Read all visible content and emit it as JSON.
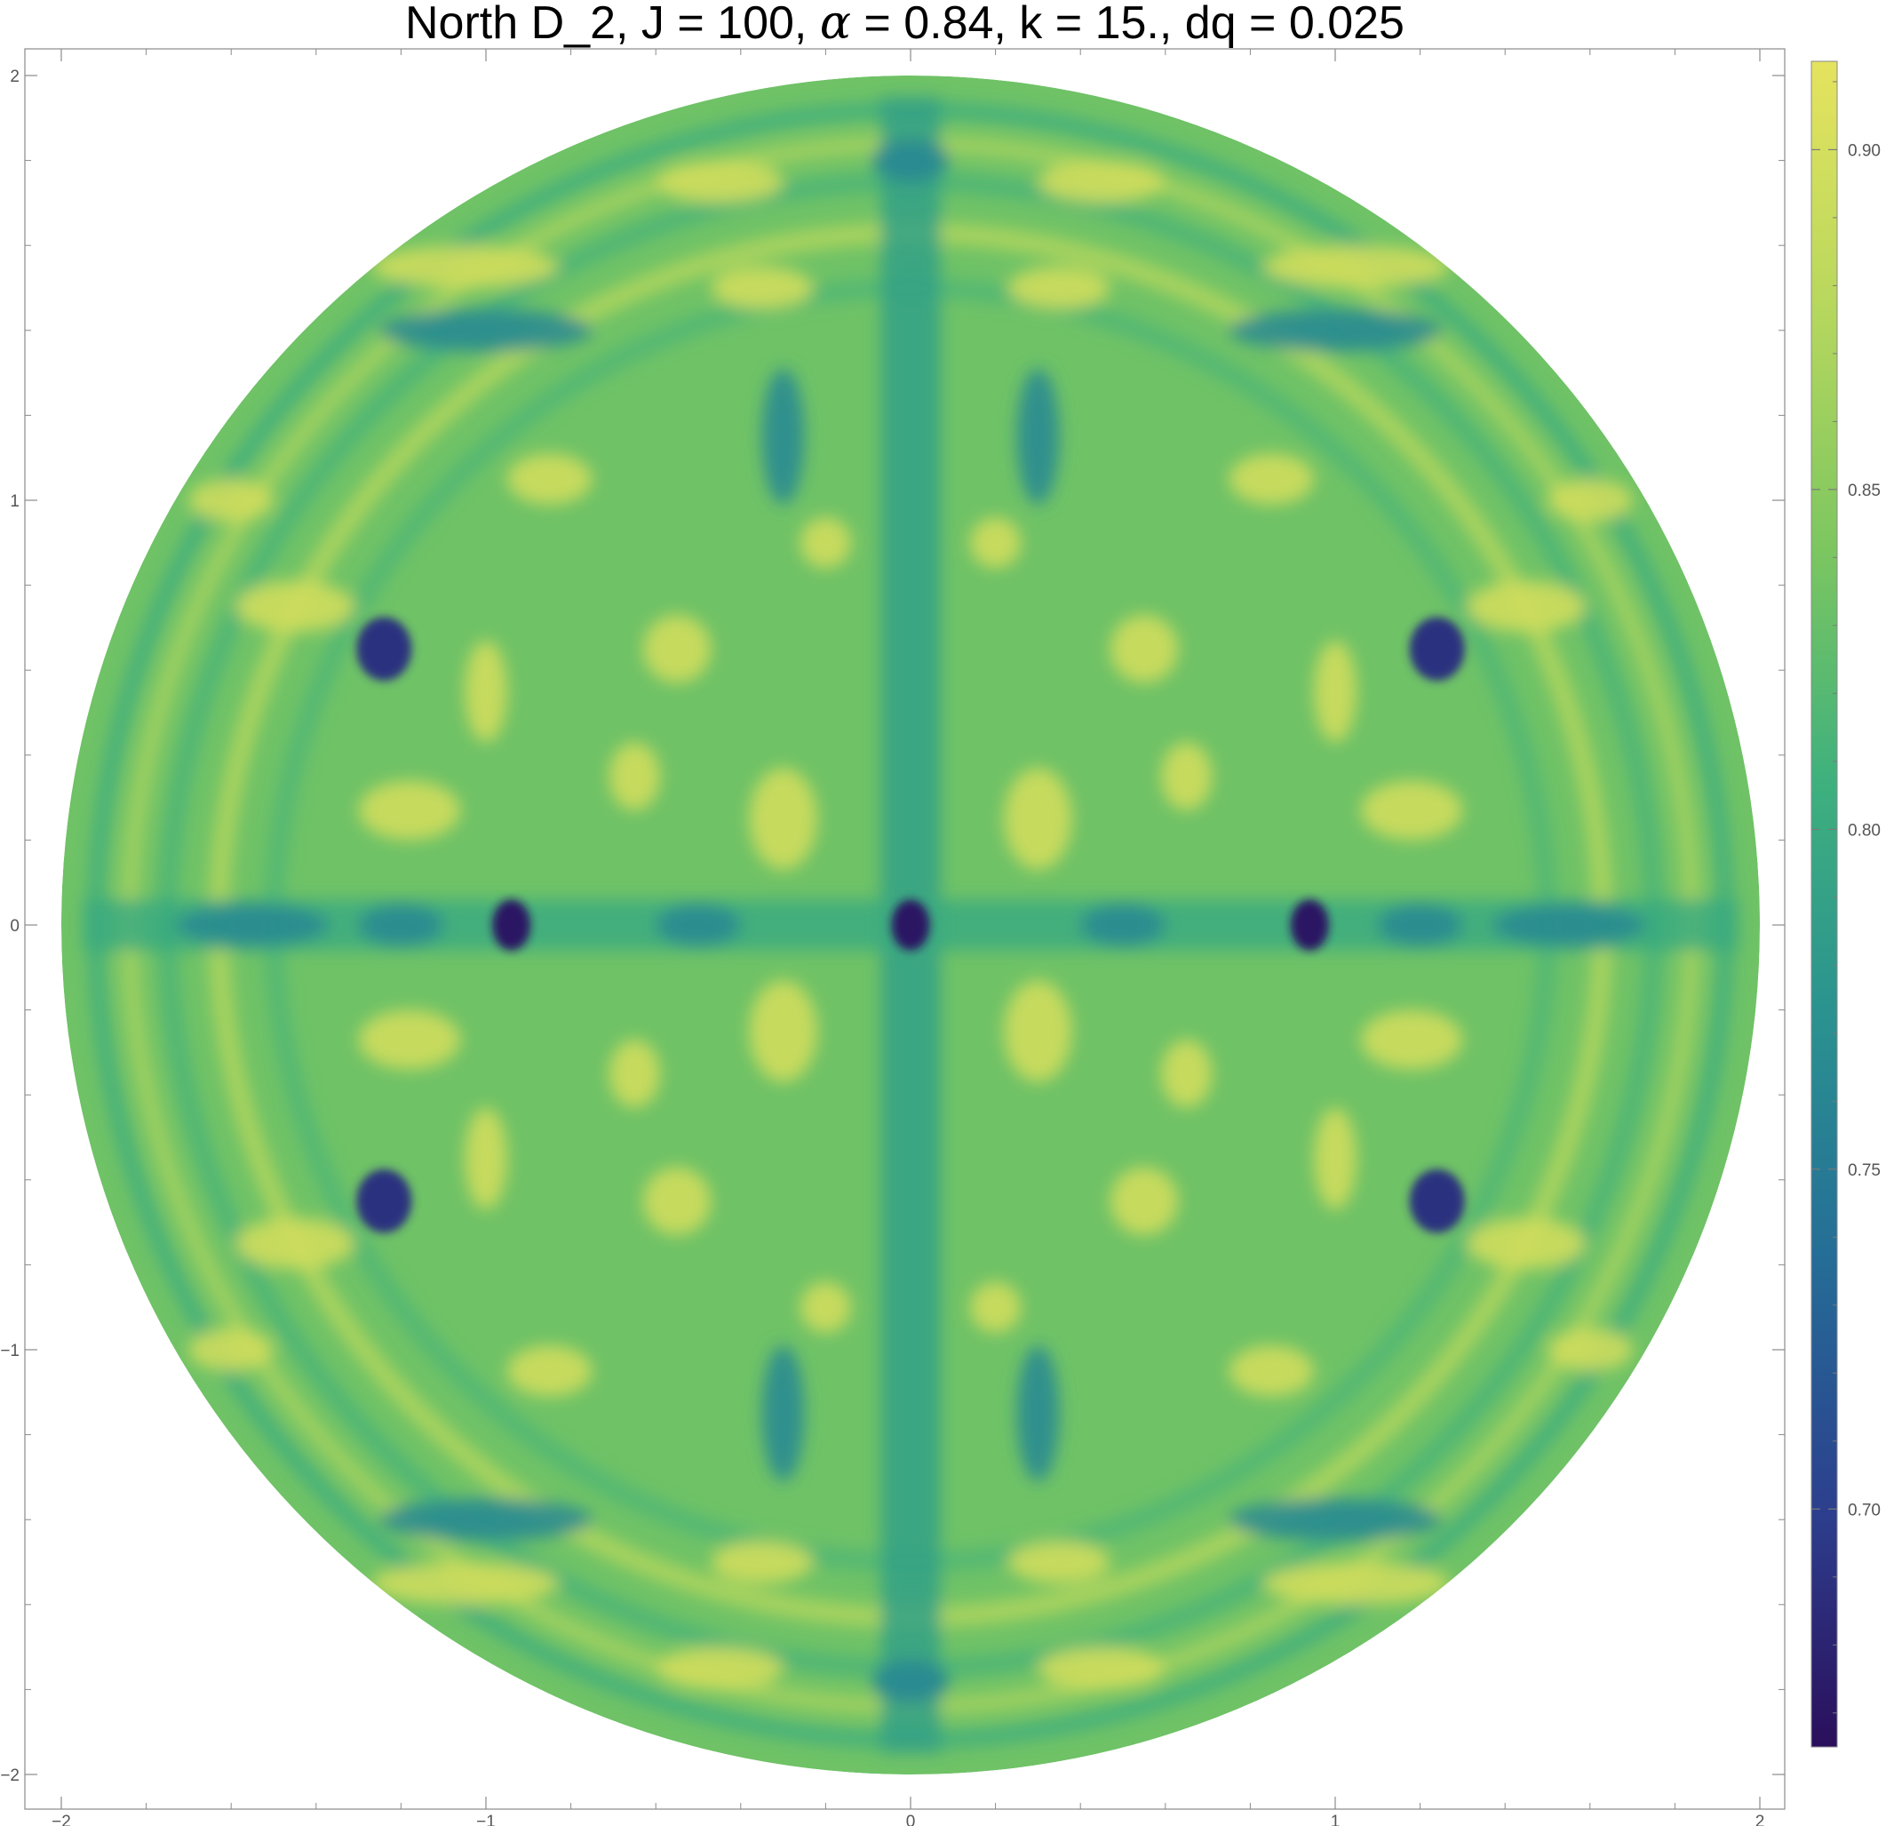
{
  "chart_data": {
    "type": "heatmap",
    "title": "North D_2, J = 100, α = 0.84, k = 15., dq = 0.025",
    "title_parts": {
      "prefix": "North D_2, J = 100, ",
      "alpha_symbol": "α",
      "suffix": " = 0.84, k = 15., dq = 0.025"
    },
    "xlabel": "",
    "ylabel": "",
    "xlim": [
      -2,
      2
    ],
    "ylim": [
      -2,
      2
    ],
    "domain_radius": 2,
    "x_ticks": [
      -2,
      -1,
      0,
      1,
      2
    ],
    "x_tick_labels": [
      "−2",
      "−1",
      "0",
      "1",
      "2"
    ],
    "y_ticks": [
      -2,
      -1,
      0,
      1,
      2
    ],
    "y_tick_labels": [
      "−2",
      "−1",
      "0",
      "1",
      "2"
    ],
    "minor_tick_step": 0.2,
    "colorbar": {
      "range": [
        0.665,
        0.913
      ],
      "ticks": [
        0.7,
        0.75,
        0.8,
        0.85,
        0.9
      ],
      "tick_labels": [
        "0.70",
        "0.75",
        "0.80",
        "0.85",
        "0.90"
      ],
      "colormap": "viridis",
      "colormap_stops": [
        "#2b0f5c",
        "#2c3f8e",
        "#256d97",
        "#2a9190",
        "#3db07e",
        "#7cc660",
        "#b9d85d",
        "#e5e35e"
      ]
    },
    "field_notes": "Four-fold symmetric pattern; dark minima on the x-axis at x = -0.94, 0, 0.94 and near (±1.24, ±0.65); darker bands along both axes; yellow lobes around (±1.18, ±0.27).",
    "dark_spots": [
      {
        "x": 0.0,
        "y": 0.0,
        "value": 0.67
      },
      {
        "x": -0.94,
        "y": 0.0,
        "value": 0.67
      },
      {
        "x": 0.94,
        "y": 0.0,
        "value": 0.67
      },
      {
        "x": -1.24,
        "y": 0.65,
        "value": 0.69
      },
      {
        "x": 1.24,
        "y": 0.65,
        "value": 0.69
      },
      {
        "x": -1.24,
        "y": -0.65,
        "value": 0.69
      },
      {
        "x": 1.24,
        "y": -0.65,
        "value": 0.69
      }
    ]
  }
}
